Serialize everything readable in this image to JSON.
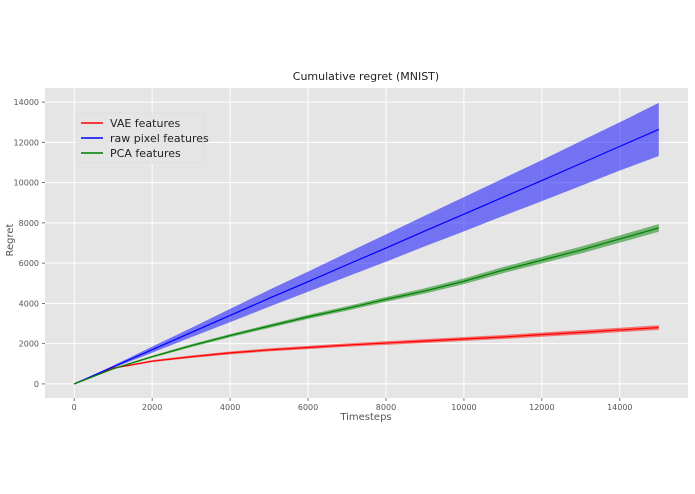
{
  "chart_data": {
    "type": "line",
    "title": "Cumulative regret (MNIST)",
    "xlabel": "Timesteps",
    "ylabel": "Regret",
    "xlim": [
      -750,
      15750
    ],
    "ylim": [
      -700,
      14700
    ],
    "xticks": [
      0,
      2000,
      4000,
      6000,
      8000,
      10000,
      12000,
      14000
    ],
    "yticks": [
      0,
      2000,
      4000,
      6000,
      8000,
      10000,
      12000,
      14000
    ],
    "grid": true,
    "legend_position": "upper left",
    "x": [
      0,
      1000,
      2000,
      3000,
      4000,
      5000,
      6000,
      7000,
      8000,
      9000,
      10000,
      11000,
      12000,
      13000,
      14000,
      15000
    ],
    "series": [
      {
        "name": "VAE features",
        "color": "#ff0000",
        "values": [
          0,
          780,
          1130,
          1350,
          1540,
          1690,
          1810,
          1930,
          2030,
          2130,
          2230,
          2330,
          2450,
          2560,
          2680,
          2800
        ],
        "band": [
          0,
          30,
          50,
          60,
          70,
          75,
          80,
          85,
          90,
          95,
          100,
          100,
          105,
          110,
          110,
          115
        ]
      },
      {
        "name": "raw pixel features",
        "color": "#0000ff",
        "values": [
          0,
          850,
          1700,
          2550,
          3400,
          4250,
          5080,
          5920,
          6750,
          7600,
          8430,
          9270,
          10100,
          10950,
          11800,
          12640
        ],
        "band": [
          0,
          60,
          150,
          230,
          330,
          420,
          500,
          590,
          680,
          760,
          850,
          930,
          1020,
          1110,
          1200,
          1320
        ]
      },
      {
        "name": "PCA features",
        "color": "#008000",
        "values": [
          0,
          750,
          1350,
          1900,
          2400,
          2870,
          3330,
          3750,
          4200,
          4620,
          5100,
          5650,
          6150,
          6650,
          7200,
          7750
        ],
        "band": [
          0,
          30,
          50,
          70,
          80,
          90,
          100,
          110,
          120,
          130,
          140,
          150,
          160,
          170,
          180,
          190
        ]
      }
    ]
  }
}
